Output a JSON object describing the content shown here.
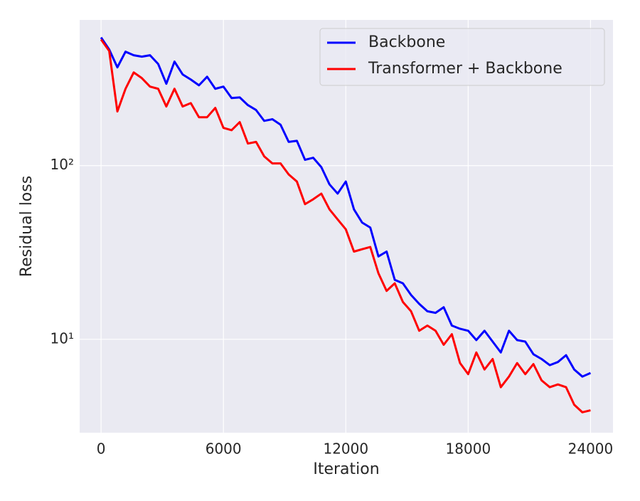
{
  "chart_data": {
    "type": "line",
    "xlabel": "Iteration",
    "ylabel": "Residual loss",
    "x": [
      0,
      400,
      800,
      1200,
      1600,
      2000,
      2400,
      2800,
      3200,
      3600,
      4000,
      4400,
      4800,
      5200,
      5600,
      6000,
      6400,
      6800,
      7200,
      7600,
      8000,
      8400,
      8800,
      9200,
      9600,
      10000,
      10400,
      10800,
      11200,
      11600,
      12000,
      12400,
      12800,
      13200,
      13600,
      14000,
      14400,
      14800,
      15200,
      15600,
      16000,
      16400,
      16800,
      17200,
      17600,
      18000,
      18400,
      18800,
      19200,
      19600,
      20000,
      20400,
      20800,
      21200,
      21600,
      22000,
      22400,
      22800,
      23200,
      23600,
      24000
    ],
    "series": [
      {
        "name": "Backbone",
        "color": "#0000ff",
        "values": [
          547,
          466,
          368,
          453,
          432,
          424,
          432,
          385,
          296,
          397,
          335,
          313,
          290,
          325,
          277,
          285,
          245,
          247,
          223,
          209,
          181,
          185,
          172,
          137,
          139,
          108,
          111,
          98,
          78,
          69,
          81,
          56,
          47,
          44,
          30,
          32,
          22,
          21,
          18,
          16,
          14.5,
          14.2,
          15.3,
          12,
          11.5,
          11.2,
          9.9,
          11.2,
          9.7,
          8.4,
          11.2,
          9.9,
          9.7,
          8.2,
          7.7,
          7.1,
          7.4,
          8.1,
          6.7,
          6.1,
          6.4
        ]
      },
      {
        "name": "Transformer + Backbone",
        "color": "#ff0000",
        "values": [
          532,
          457,
          205,
          277,
          344,
          319,
          285,
          277,
          219,
          277,
          219,
          229,
          190,
          190,
          215,
          165,
          160,
          178,
          134,
          137,
          113,
          103,
          103,
          89,
          81,
          60,
          64,
          69,
          56,
          49,
          43,
          32,
          33,
          34,
          24,
          19,
          21,
          16.4,
          14.5,
          11.2,
          12,
          11.2,
          9.3,
          10.7,
          7.3,
          6.3,
          8.4,
          6.7,
          7.7,
          5.3,
          6.1,
          7.3,
          6.3,
          7.2,
          5.8,
          5.3,
          5.5,
          5.3,
          4.2,
          3.8,
          3.9
        ]
      }
    ],
    "xlim": [
      -1050,
      25100
    ],
    "ylim": [
      2.9,
      690
    ],
    "log_y": true,
    "xticks": [
      0,
      6000,
      12000,
      18000,
      24000
    ],
    "yticks": [
      {
        "value": 10,
        "label": "10¹"
      },
      {
        "value": 100,
        "label": "10²"
      }
    ],
    "grid": true,
    "legend": "upper right"
  }
}
